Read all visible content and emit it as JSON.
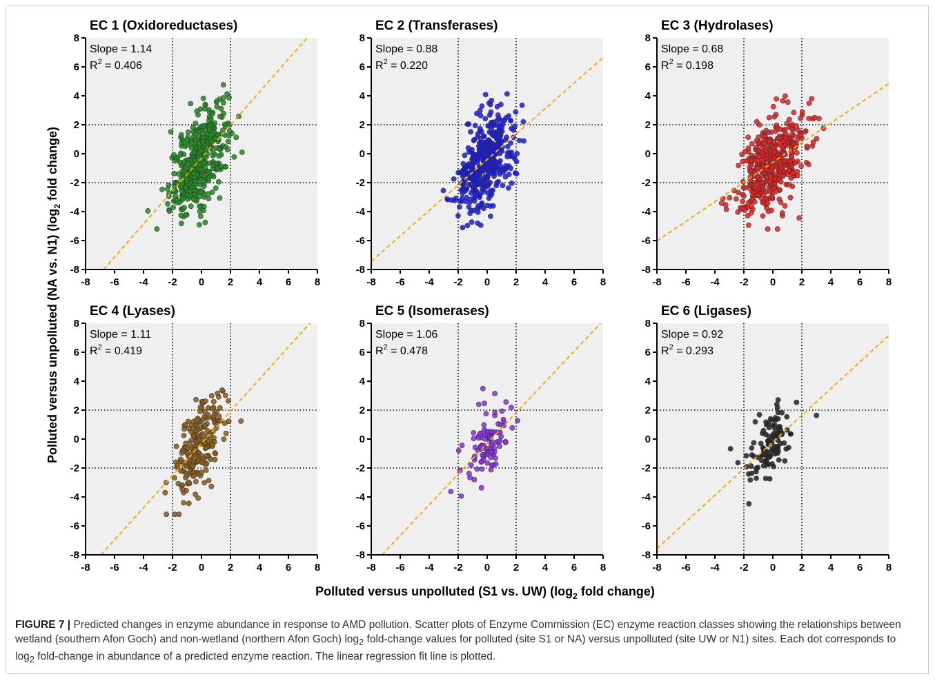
{
  "figure": {
    "ylabel": {
      "pre": "Polluted versus unpolluted (NA vs. N1) (log",
      "sub": "2",
      "post": " fold change)"
    },
    "xlabel": {
      "pre": "Polluted versus unpolluted (S1 vs. UW) (log",
      "sub": "2",
      "post": " fold change)"
    },
    "caption": {
      "label": "FIGURE 7 |",
      "text_1": " Predicted changes in enzyme abundance in response to AMD pollution. Scatter plots of Enzyme Commission (EC) enzyme reaction classes showing the relationships between wetland (southern Afon Goch) and non-wetland (northern Afon Goch) log",
      "sub": "2",
      "text_2": " fold-change values for polluted (site S1 or NA) versus unpolluted (site UW or N1) sites. Each dot corresponds to log",
      "sub2": "2",
      "text_3": " fold-change in abundance of a predicted enzyme reaction. The linear regression fit line is plotted."
    }
  },
  "chart_data": [
    {
      "type": "scatter",
      "title": "EC 1 (Oxidoreductases)",
      "slope_text": "Slope = 1.14",
      "r2_label": "R",
      "r2_value": " = 0.406",
      "slope": 1.14,
      "intercept": -0.3,
      "color": "#1e8c1e",
      "n_points": 420,
      "x_center": -0.2,
      "x_sd": 1.0,
      "y_sd": 1.55,
      "xlim": [
        -8,
        8
      ],
      "ylim": [
        -8,
        8
      ],
      "xticks": [
        -8,
        -6,
        -4,
        -2,
        0,
        2,
        4,
        6,
        8
      ],
      "yticks": [
        -8,
        -6,
        -4,
        -2,
        0,
        2,
        4,
        6,
        8
      ],
      "ref_lines": [
        -2,
        2
      ]
    },
    {
      "type": "scatter",
      "title": "EC 2 (Transferases)",
      "slope_text": "Slope = 0.88",
      "r2_label": "R",
      "r2_value": " = 0.220",
      "slope": 0.88,
      "intercept": -0.4,
      "color": "#1a1ae6",
      "n_points": 430,
      "x_center": -0.1,
      "x_sd": 0.95,
      "y_sd": 1.55,
      "xlim": [
        -8,
        8
      ],
      "ylim": [
        -8,
        8
      ],
      "xticks": [
        -8,
        -6,
        -4,
        -2,
        0,
        2,
        4,
        6,
        8
      ],
      "yticks": [
        -8,
        -6,
        -4,
        -2,
        0,
        2,
        4,
        6,
        8
      ],
      "ref_lines": [
        -2,
        2
      ]
    },
    {
      "type": "scatter",
      "title": "EC 3 (Hydrolases)",
      "slope_text": "Slope = 0.68",
      "r2_label": "R",
      "r2_value": " = 0.198",
      "slope": 0.68,
      "intercept": -0.6,
      "color": "#e61e1e",
      "n_points": 470,
      "x_center": -0.1,
      "x_sd": 1.1,
      "y_sd": 1.45,
      "xlim": [
        -8,
        8
      ],
      "ylim": [
        -8,
        8
      ],
      "xticks": [
        -8,
        -6,
        -4,
        -2,
        0,
        2,
        4,
        6,
        8
      ],
      "yticks": [
        -8,
        -6,
        -4,
        -2,
        0,
        2,
        4,
        6,
        8
      ],
      "ref_lines": [
        -2,
        2
      ]
    },
    {
      "type": "scatter",
      "title": "EC 4 (Lyases)",
      "slope_text": "Slope = 1.11",
      "r2_label": "R",
      "r2_value": " = 0.419",
      "slope": 1.11,
      "intercept": -0.3,
      "color": "#8b5a14",
      "n_points": 210,
      "x_center": -0.3,
      "x_sd": 0.9,
      "y_sd": 1.45,
      "xlim": [
        -8,
        8
      ],
      "ylim": [
        -8,
        8
      ],
      "xticks": [
        -8,
        -6,
        -4,
        -2,
        0,
        2,
        4,
        6,
        8
      ],
      "yticks": [
        -8,
        -6,
        -4,
        -2,
        0,
        2,
        4,
        6,
        8
      ],
      "ref_lines": [
        -2,
        2
      ]
    },
    {
      "type": "scatter",
      "title": "EC 5 (Isomerases)",
      "slope_text": "Slope = 1.06",
      "r2_label": "R",
      "r2_value": " = 0.478",
      "slope": 1.06,
      "intercept": -0.3,
      "color": "#8a2be2",
      "n_points": 100,
      "x_center": 0.0,
      "x_sd": 0.9,
      "y_sd": 1.2,
      "xlim": [
        -8,
        8
      ],
      "ylim": [
        -8,
        8
      ],
      "xticks": [
        -8,
        -6,
        -4,
        -2,
        0,
        2,
        4,
        6,
        8
      ],
      "yticks": [
        -8,
        -6,
        -4,
        -2,
        0,
        2,
        4,
        6,
        8
      ],
      "ref_lines": [
        -2,
        2
      ]
    },
    {
      "type": "scatter",
      "title": "EC 6 (Ligases)",
      "slope_text": "Slope = 0.92",
      "r2_label": "R",
      "r2_value": " = 0.293",
      "slope": 0.92,
      "intercept": -0.2,
      "color": "#222222",
      "n_points": 110,
      "x_center": -0.1,
      "x_sd": 0.8,
      "y_sd": 1.3,
      "xlim": [
        -8,
        8
      ],
      "ylim": [
        -8,
        8
      ],
      "xticks": [
        -8,
        -6,
        -4,
        -2,
        0,
        2,
        4,
        6,
        8
      ],
      "yticks": [
        -8,
        -6,
        -4,
        -2,
        0,
        2,
        4,
        6,
        8
      ],
      "ref_lines": [
        -2,
        2
      ]
    }
  ]
}
